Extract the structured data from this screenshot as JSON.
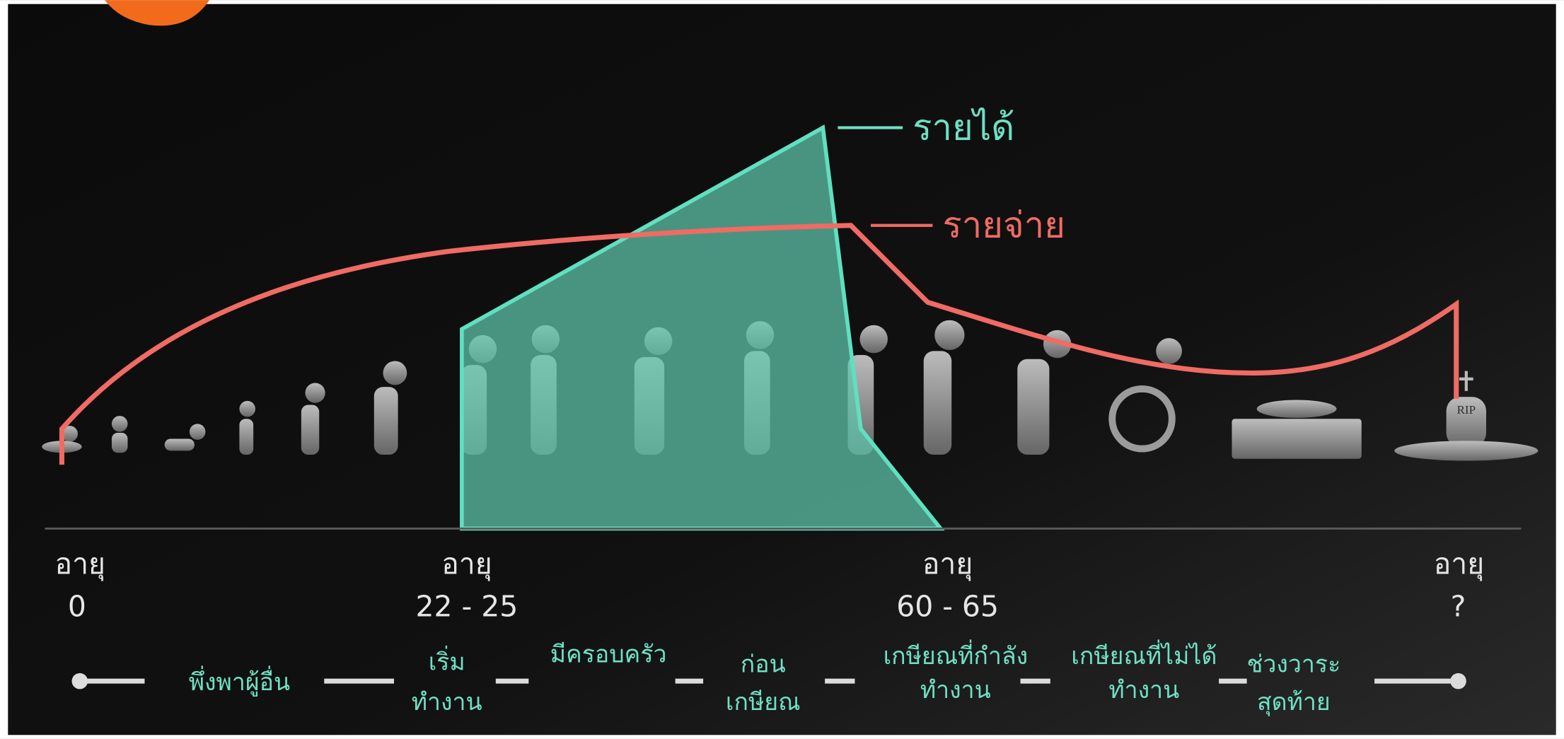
{
  "legend": [
    {
      "label": "รายได้"
    },
    {
      "label": "รายจ่าย"
    }
  ],
  "ages": [
    {
      "label": "อายุ",
      "value": "0"
    },
    {
      "label": "อายุ",
      "value": "22 - 25"
    },
    {
      "label": "อายุ",
      "value": "60 - 65"
    },
    {
      "label": "อายุ",
      "value": "?"
    }
  ],
  "stages": [
    {
      "lines": [
        "พึ่งพาผู้อื่น"
      ]
    },
    {
      "lines": [
        "เริ่ม",
        "ทำงาน"
      ]
    },
    {
      "lines": [
        "มีครอบครัว"
      ]
    },
    {
      "lines": [
        "ก่อน",
        "เกษียณ"
      ]
    },
    {
      "lines": [
        "เกษียณที่กำลัง",
        "ทำงาน"
      ]
    },
    {
      "lines": [
        "เกษียณที่ไม่ได้",
        "ทำงาน"
      ]
    },
    {
      "lines": [
        "ช่วงวาระ",
        "สุดท้าย"
      ]
    }
  ]
}
